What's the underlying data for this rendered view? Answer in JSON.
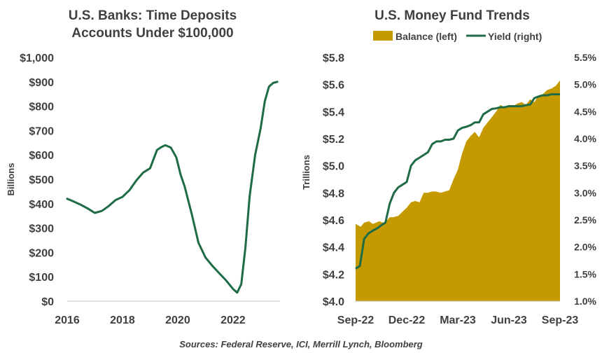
{
  "chart_data": [
    {
      "type": "line",
      "title_lines": [
        "U.S. Banks: Time Deposits",
        "Accounts Under $100,000"
      ],
      "ylabel": "Billions",
      "xlim": [
        2016,
        2023.7
      ],
      "ylim": [
        0,
        1000
      ],
      "x_ticks": [
        "2016",
        "2018",
        "2020",
        "2022"
      ],
      "y_ticks": [
        "$0",
        "$100",
        "$200",
        "$300",
        "$400",
        "$500",
        "$600",
        "$700",
        "$800",
        "$900",
        "$1,000"
      ],
      "line_color": "#1f6b45",
      "series": [
        {
          "x": [
            2016.0,
            2016.25,
            2016.5,
            2016.75,
            2017.0,
            2017.25,
            2017.5,
            2017.75,
            2018.0,
            2018.25,
            2018.5,
            2018.75,
            2019.0,
            2019.25,
            2019.4,
            2019.55,
            2019.75,
            2019.95,
            2020.1,
            2020.25,
            2020.5,
            2020.75,
            2021.0,
            2021.25,
            2021.5,
            2021.75,
            2022.0,
            2022.15,
            2022.3,
            2022.45,
            2022.6,
            2022.8,
            2023.0,
            2023.15,
            2023.3,
            2023.45,
            2023.6
          ],
          "values": [
            420,
            408,
            395,
            380,
            362,
            370,
            390,
            415,
            428,
            455,
            495,
            528,
            545,
            620,
            632,
            640,
            630,
            590,
            520,
            470,
            360,
            240,
            180,
            145,
            115,
            85,
            50,
            35,
            70,
            220,
            430,
            600,
            710,
            820,
            880,
            895,
            900
          ]
        }
      ]
    },
    {
      "type": "area",
      "title": "U.S. Money Fund Trends",
      "ylabel": "Trillions",
      "categories": [
        "Sep-22",
        "Dec-22",
        "Mar-23",
        "Jun-23",
        "Sep-23"
      ],
      "ylim_left": [
        4.0,
        5.8
      ],
      "ylim_right": [
        1.0,
        5.5
      ],
      "y_ticks_left": [
        "$4.0",
        "$4.2",
        "$4.4",
        "$4.6",
        "$4.8",
        "$5.0",
        "$5.2",
        "$5.4",
        "$5.6",
        "$5.8"
      ],
      "y_ticks_right": [
        "1.0%",
        "1.5%",
        "2.0%",
        "2.5%",
        "3.0%",
        "3.5%",
        "4.0%",
        "4.5%",
        "5.0%",
        "5.5%"
      ],
      "legend": [
        "Balance (left)",
        "Yield (right)"
      ],
      "balance_color": "#c49a00",
      "yield_color": "#1f6b45",
      "series": [
        {
          "name": "Balance (left)",
          "x": [
            0,
            0.3,
            0.5,
            0.8,
            1.0,
            1.2,
            1.4,
            1.6,
            1.8,
            2.0,
            2.2,
            2.5,
            2.75,
            3.0,
            3.25,
            3.5,
            3.75,
            4.0,
            4.25,
            4.5,
            4.7,
            5.0,
            5.25,
            5.5,
            5.75,
            6.0,
            6.25,
            6.5,
            6.75,
            7.0,
            7.25,
            7.5,
            7.75,
            8.0,
            8.25,
            8.5,
            8.75,
            9.0,
            9.25,
            9.5,
            9.75,
            10.0,
            10.25,
            10.5,
            10.75,
            11.0,
            11.25,
            11.5,
            11.75,
            12.0
          ],
          "values": [
            4.57,
            4.55,
            4.58,
            4.59,
            4.57,
            4.58,
            4.59,
            4.58,
            4.59,
            4.62,
            4.62,
            4.63,
            4.66,
            4.69,
            4.73,
            4.74,
            4.73,
            4.8,
            4.8,
            4.81,
            4.81,
            4.8,
            4.81,
            4.82,
            4.9,
            4.97,
            5.09,
            5.18,
            5.22,
            5.25,
            5.21,
            5.28,
            5.32,
            5.36,
            5.4,
            5.45,
            5.43,
            5.45,
            5.44,
            5.46,
            5.47,
            5.45,
            5.49,
            5.47,
            5.52,
            5.53,
            5.56,
            5.57,
            5.59,
            5.63
          ]
        },
        {
          "name": "Yield (right)",
          "x": [
            0,
            0.25,
            0.5,
            0.75,
            1.0,
            1.3,
            1.5,
            1.75,
            2.0,
            2.25,
            2.5,
            2.75,
            3.0,
            3.25,
            3.5,
            3.75,
            4.0,
            4.25,
            4.5,
            4.75,
            5.0,
            5.25,
            5.5,
            5.75,
            6.0,
            6.25,
            6.5,
            6.75,
            7.0,
            7.25,
            7.5,
            7.75,
            8.0,
            8.25,
            8.5,
            8.75,
            9.0,
            9.25,
            9.5,
            9.75,
            10.0,
            10.25,
            10.5,
            10.75,
            11.0,
            11.25,
            11.5,
            11.75,
            12.0
          ],
          "values": [
            1.6,
            1.65,
            2.15,
            2.25,
            2.3,
            2.35,
            2.4,
            2.45,
            2.8,
            3.0,
            3.1,
            3.15,
            3.2,
            3.5,
            3.6,
            3.65,
            3.7,
            3.75,
            3.9,
            3.95,
            3.95,
            3.98,
            3.98,
            4.0,
            4.15,
            4.2,
            4.22,
            4.25,
            4.3,
            4.3,
            4.45,
            4.5,
            4.55,
            4.56,
            4.58,
            4.58,
            4.6,
            4.6,
            4.6,
            4.6,
            4.62,
            4.63,
            4.75,
            4.78,
            4.8,
            4.8,
            4.82,
            4.82,
            4.82
          ]
        }
      ]
    }
  ],
  "source": "Sources: Federal Reserve, ICI, Merrill Lynch, Bloomberg"
}
